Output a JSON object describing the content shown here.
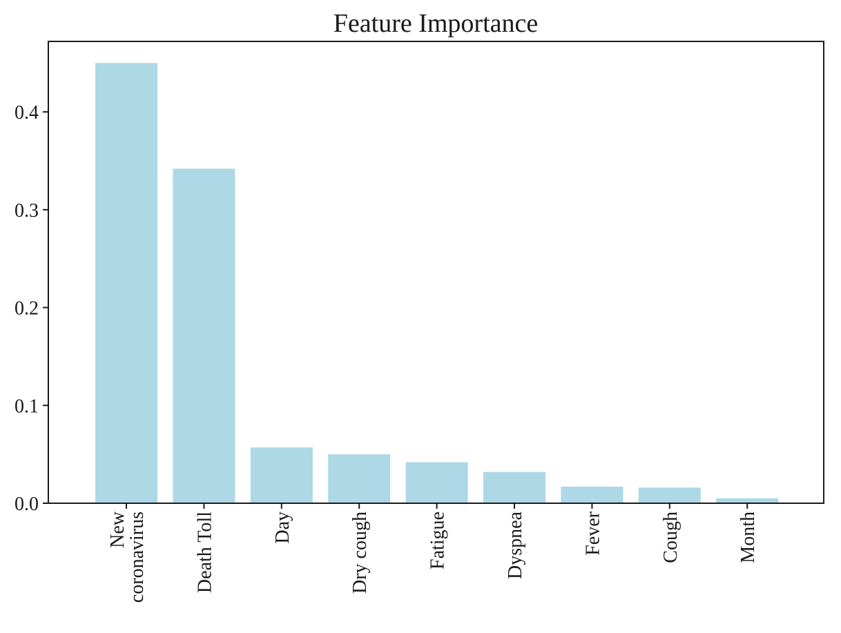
{
  "chart_data": {
    "type": "bar",
    "title": "Feature Importance",
    "xlabel": "",
    "ylabel": "",
    "categories": [
      [
        "New",
        "coronavirus"
      ],
      [
        "Death Toll"
      ],
      [
        "Day"
      ],
      [
        "Dry cough"
      ],
      [
        "Fatigue"
      ],
      [
        "Dyspnea"
      ],
      [
        "Fever"
      ],
      [
        "Cough"
      ],
      [
        "Month"
      ]
    ],
    "values": [
      0.45,
      0.342,
      0.057,
      0.05,
      0.042,
      0.032,
      0.017,
      0.016,
      0.005
    ],
    "yticks": [
      "0.0",
      "0.1",
      "0.2",
      "0.3",
      "0.4"
    ],
    "ylim": [
      0,
      0.472
    ],
    "bar_color": "#add8e6",
    "axis_color": "#1a1a1a",
    "grid": false,
    "legend": "none"
  }
}
